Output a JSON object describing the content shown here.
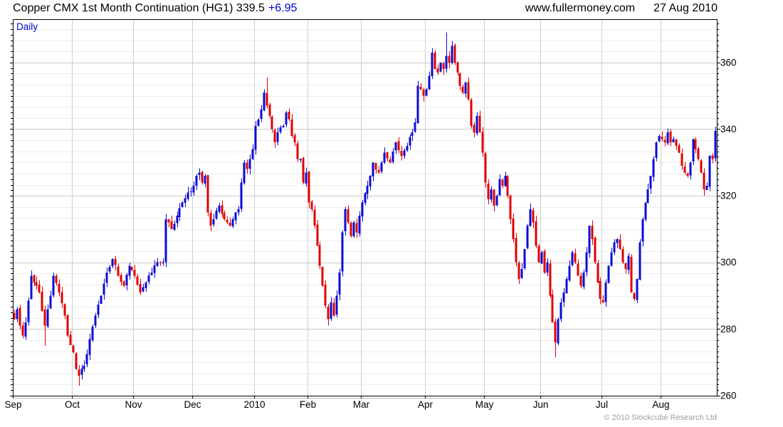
{
  "header": {
    "title": "Copper CMX 1st Month Continuation (HG1) 339.5",
    "change": "+6.95",
    "website": "www.fullermoney.com",
    "date": "27 Aug 2010"
  },
  "chart": {
    "interval": "Daily",
    "copyright": "© 2010 Stockcube Research Ltd"
  },
  "chart_data": {
    "type": "candlestick",
    "instrument": "Copper CMX 1st Month Continuation",
    "symbol": "HG1",
    "interval": "Daily",
    "last_price": 339.5,
    "change": "+6.95",
    "date": "27 Aug 2010",
    "y_axis": {
      "min": 260,
      "max": 373,
      "tick_labels": [
        "360",
        "340",
        "320",
        "300",
        "280",
        "260"
      ],
      "tick_values": [
        360,
        340,
        320,
        300,
        280,
        260
      ],
      "major_step": 20,
      "minor_per_major": 6,
      "ticks_per_major": 12
    },
    "x_axis": {
      "bars_total": 251,
      "months": [
        {
          "label": "Sep",
          "start_index": 0
        },
        {
          "label": "Oct",
          "start_index": 21
        },
        {
          "label": "Nov",
          "start_index": 43
        },
        {
          "label": "Dec",
          "start_index": 64
        },
        {
          "label": "2010",
          "start_index": 86
        },
        {
          "label": "Feb",
          "start_index": 105
        },
        {
          "label": "Mar",
          "start_index": 124
        },
        {
          "label": "Apr",
          "start_index": 147
        },
        {
          "label": "May",
          "start_index": 168
        },
        {
          "label": "Jun",
          "start_index": 188
        },
        {
          "label": "Jul",
          "start_index": 210
        },
        {
          "label": "Aug",
          "start_index": 231
        }
      ]
    },
    "close_anchors": [
      [
        0,
        283
      ],
      [
        1,
        286
      ],
      [
        2,
        281
      ],
      [
        3,
        278
      ],
      [
        4,
        282
      ],
      [
        6,
        296
      ],
      [
        7,
        294
      ],
      [
        9,
        291
      ],
      [
        11,
        281
      ],
      [
        13,
        290
      ],
      [
        14,
        296
      ],
      [
        16,
        291
      ],
      [
        18,
        284
      ],
      [
        19,
        278
      ],
      [
        21,
        273
      ],
      [
        22,
        268
      ],
      [
        23,
        266
      ],
      [
        25,
        269
      ],
      [
        27,
        277
      ],
      [
        29,
        284
      ],
      [
        31,
        290
      ],
      [
        33,
        297
      ],
      [
        35,
        301
      ],
      [
        37,
        296
      ],
      [
        39,
        293
      ],
      [
        41,
        299
      ],
      [
        43,
        296
      ],
      [
        45,
        291
      ],
      [
        47,
        294
      ],
      [
        49,
        297
      ],
      [
        51,
        300
      ],
      [
        53,
        300
      ],
      [
        54,
        313
      ],
      [
        56,
        310
      ],
      [
        58,
        314
      ],
      [
        60,
        318
      ],
      [
        62,
        321
      ],
      [
        64,
        323
      ],
      [
        65,
        326
      ],
      [
        66,
        327
      ],
      [
        67,
        324
      ],
      [
        68,
        326
      ],
      [
        69,
        315
      ],
      [
        70,
        311
      ],
      [
        71,
        313
      ],
      [
        73,
        317
      ],
      [
        75,
        313
      ],
      [
        77,
        311
      ],
      [
        79,
        315
      ],
      [
        80,
        316
      ],
      [
        81,
        324
      ],
      [
        82,
        330
      ],
      [
        83,
        328
      ],
      [
        84,
        331
      ],
      [
        85,
        334
      ],
      [
        86,
        341
      ],
      [
        88,
        346
      ],
      [
        89,
        351
      ],
      [
        90,
        347
      ],
      [
        91,
        344
      ],
      [
        92,
        340
      ],
      [
        93,
        336
      ],
      [
        94,
        339
      ],
      [
        96,
        341
      ],
      [
        97,
        345
      ],
      [
        98,
        343
      ],
      [
        99,
        338
      ],
      [
        100,
        336
      ],
      [
        101,
        331
      ],
      [
        102,
        331
      ],
      [
        103,
        324
      ],
      [
        104,
        327
      ],
      [
        105,
        318
      ],
      [
        106,
        316
      ],
      [
        107,
        311
      ],
      [
        108,
        305
      ],
      [
        109,
        299
      ],
      [
        110,
        293
      ],
      [
        111,
        287
      ],
      [
        112,
        283
      ],
      [
        113,
        288
      ],
      [
        114,
        284
      ],
      [
        115,
        290
      ],
      [
        116,
        297
      ],
      [
        117,
        309
      ],
      [
        118,
        316
      ],
      [
        119,
        312
      ],
      [
        120,
        308
      ],
      [
        121,
        312
      ],
      [
        122,
        309
      ],
      [
        123,
        314
      ],
      [
        124,
        318
      ],
      [
        126,
        323
      ],
      [
        128,
        330
      ],
      [
        130,
        327
      ],
      [
        132,
        333
      ],
      [
        134,
        330
      ],
      [
        136,
        336
      ],
      [
        138,
        332
      ],
      [
        140,
        335
      ],
      [
        142,
        339
      ],
      [
        143,
        342
      ],
      [
        144,
        353
      ],
      [
        145,
        352
      ],
      [
        146,
        350
      ],
      [
        147,
        352
      ],
      [
        148,
        356
      ],
      [
        149,
        363
      ],
      [
        150,
        358
      ],
      [
        151,
        357
      ],
      [
        152,
        360
      ],
      [
        153,
        358
      ],
      [
        154,
        362
      ],
      [
        155,
        360
      ],
      [
        156,
        365
      ],
      [
        157,
        360
      ],
      [
        158,
        357
      ],
      [
        159,
        353
      ],
      [
        160,
        351
      ],
      [
        161,
        354
      ],
      [
        162,
        349
      ],
      [
        163,
        341
      ],
      [
        164,
        339
      ],
      [
        165,
        344
      ],
      [
        166,
        339
      ],
      [
        167,
        333
      ],
      [
        168,
        324
      ],
      [
        169,
        319
      ],
      [
        170,
        322
      ],
      [
        171,
        317
      ],
      [
        172,
        320
      ],
      [
        173,
        325
      ],
      [
        174,
        323
      ],
      [
        175,
        326
      ],
      [
        176,
        320
      ],
      [
        177,
        313
      ],
      [
        178,
        307
      ],
      [
        179,
        300
      ],
      [
        180,
        295
      ],
      [
        181,
        298
      ],
      [
        182,
        304
      ],
      [
        183,
        311
      ],
      [
        184,
        316
      ],
      [
        185,
        312
      ],
      [
        186,
        305
      ],
      [
        187,
        300
      ],
      [
        188,
        303
      ],
      [
        189,
        297
      ],
      [
        190,
        300
      ],
      [
        191,
        290
      ],
      [
        192,
        282
      ],
      [
        193,
        276
      ],
      [
        194,
        283
      ],
      [
        195,
        288
      ],
      [
        196,
        291
      ],
      [
        197,
        295
      ],
      [
        198,
        299
      ],
      [
        199,
        303
      ],
      [
        200,
        300
      ],
      [
        201,
        296
      ],
      [
        202,
        293
      ],
      [
        203,
        297
      ],
      [
        204,
        303
      ],
      [
        205,
        311
      ],
      [
        206,
        307
      ],
      [
        207,
        300
      ],
      [
        208,
        294
      ],
      [
        209,
        289
      ],
      [
        210,
        288
      ],
      [
        211,
        294
      ],
      [
        212,
        299
      ],
      [
        213,
        303
      ],
      [
        214,
        306
      ],
      [
        215,
        307
      ],
      [
        216,
        304
      ],
      [
        217,
        300
      ],
      [
        218,
        298
      ],
      [
        219,
        302
      ],
      [
        220,
        291
      ],
      [
        221,
        289
      ],
      [
        222,
        295
      ],
      [
        223,
        306
      ],
      [
        224,
        313
      ],
      [
        225,
        318
      ],
      [
        226,
        322
      ],
      [
        227,
        326
      ],
      [
        228,
        331
      ],
      [
        229,
        336
      ],
      [
        230,
        338
      ],
      [
        231,
        337
      ],
      [
        232,
        336
      ],
      [
        233,
        339
      ],
      [
        234,
        336
      ],
      [
        235,
        337
      ],
      [
        236,
        335
      ],
      [
        237,
        333
      ],
      [
        238,
        329
      ],
      [
        239,
        327
      ],
      [
        240,
        326
      ],
      [
        241,
        330
      ],
      [
        242,
        337
      ],
      [
        243,
        334
      ],
      [
        244,
        331
      ],
      [
        245,
        327
      ],
      [
        246,
        322
      ],
      [
        247,
        323
      ],
      [
        248,
        332
      ],
      [
        249,
        331
      ],
      [
        250,
        339.5
      ]
    ],
    "spikes": [
      {
        "i": 11,
        "low": 275
      },
      {
        "i": 23,
        "low": 263
      },
      {
        "i": 90,
        "high": 355.5
      },
      {
        "i": 112,
        "low": 281
      },
      {
        "i": 154,
        "high": 369
      },
      {
        "i": 193,
        "low": 271.5
      },
      {
        "i": 246,
        "low": 320
      }
    ],
    "noise": {
      "seed": 9,
      "close_jitter": 1.5,
      "wick_extra": 1.7,
      "open_gap": 0.8
    },
    "colors": {
      "up": "#0b0bd6",
      "down": "#e10000",
      "grid_major": "#c9c9c9",
      "grid_minor": "#ededed",
      "month_grid": "#cfcfcf",
      "border": "#000000",
      "shadow": "#b3b3b3",
      "interval_label": "#0000cc",
      "change_text": "#0000cc",
      "copyright": "#9e9e9e",
      "text": "#000000"
    }
  }
}
